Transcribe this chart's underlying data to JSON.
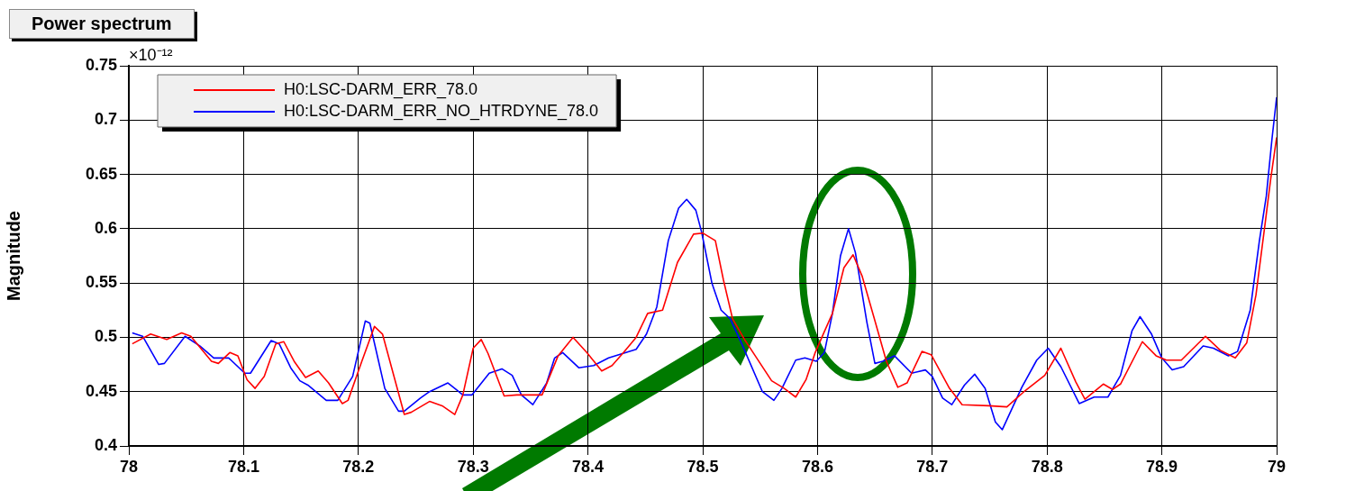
{
  "chart_data": {
    "type": "line",
    "title": "Power spectrum",
    "ylabel": "Magnitude",
    "annotations": [
      "×10⁻¹²"
    ],
    "xlim": [
      78,
      79
    ],
    "xticks": [
      78,
      78.1,
      78.2,
      78.3,
      78.4,
      78.5,
      78.6,
      78.7,
      78.8,
      78.9,
      79
    ],
    "ylim": [
      0.4,
      0.75
    ],
    "yticks": [
      0.4,
      0.45,
      0.5,
      0.55,
      0.6,
      0.65,
      0.7,
      0.75
    ],
    "grid": true,
    "legend": "top left",
    "line_style": "solid",
    "series": [
      {
        "name": "H0:LSC-DARM_ERR_78.0",
        "color": "#ff0000",
        "x": [
          78.003,
          78.019,
          78.033,
          78.046,
          78.054,
          78.072,
          78.078,
          78.088,
          78.095,
          78.103,
          78.11,
          78.118,
          78.128,
          78.135,
          78.144,
          78.154,
          78.165,
          78.174,
          78.186,
          78.191,
          78.203,
          78.214,
          78.221,
          78.231,
          78.24,
          78.246,
          78.262,
          78.273,
          78.284,
          78.291,
          78.3,
          78.307,
          78.313,
          78.327,
          78.338,
          78.348,
          78.36,
          78.374,
          78.387,
          78.399,
          78.412,
          78.421,
          78.431,
          78.442,
          78.452,
          78.465,
          78.478,
          78.492,
          78.5,
          78.511,
          78.518,
          78.526,
          78.537,
          78.547,
          78.56,
          78.571,
          78.581,
          78.59,
          78.598,
          78.605,
          78.613,
          78.623,
          78.631,
          78.639,
          78.649,
          78.66,
          78.67,
          78.678,
          78.691,
          78.699,
          78.715,
          78.726,
          78.749,
          78.765,
          78.781,
          78.798,
          78.812,
          78.825,
          78.833,
          78.849,
          78.857,
          78.864,
          78.883,
          78.895,
          78.904,
          78.917,
          78.938,
          78.951,
          78.964,
          78.974,
          78.982,
          78.99,
          78.995,
          79.0
        ],
        "values": [
          0.494,
          0.503,
          0.498,
          0.504,
          0.501,
          0.478,
          0.476,
          0.486,
          0.483,
          0.461,
          0.453,
          0.464,
          0.494,
          0.496,
          0.478,
          0.463,
          0.469,
          0.458,
          0.439,
          0.442,
          0.478,
          0.51,
          0.503,
          0.464,
          0.429,
          0.431,
          0.441,
          0.437,
          0.429,
          0.447,
          0.49,
          0.498,
          0.485,
          0.446,
          0.447,
          0.447,
          0.447,
          0.483,
          0.5,
          0.486,
          0.469,
          0.474,
          0.486,
          0.5,
          0.522,
          0.525,
          0.569,
          0.595,
          0.596,
          0.589,
          0.553,
          0.517,
          0.497,
          0.481,
          0.46,
          0.453,
          0.445,
          0.461,
          0.486,
          0.503,
          0.522,
          0.564,
          0.576,
          0.556,
          0.519,
          0.478,
          0.454,
          0.458,
          0.487,
          0.484,
          0.453,
          0.438,
          0.437,
          0.436,
          0.451,
          0.465,
          0.49,
          0.459,
          0.443,
          0.457,
          0.452,
          0.457,
          0.496,
          0.483,
          0.479,
          0.479,
          0.501,
          0.488,
          0.481,
          0.495,
          0.539,
          0.605,
          0.647,
          0.684
        ]
      },
      {
        "name": "H0:LSC-DARM_ERR_NO_HTRDYNE_78.0",
        "color": "#0000ff",
        "x": [
          78.003,
          78.012,
          78.026,
          78.031,
          78.049,
          78.062,
          78.074,
          78.087,
          78.101,
          78.106,
          78.124,
          78.131,
          78.141,
          78.149,
          78.156,
          78.172,
          78.182,
          78.195,
          78.206,
          78.21,
          78.223,
          78.235,
          78.24,
          78.254,
          78.262,
          78.278,
          78.291,
          78.299,
          78.314,
          78.325,
          78.334,
          78.342,
          78.352,
          78.364,
          78.371,
          78.378,
          78.392,
          78.405,
          78.418,
          78.442,
          78.451,
          78.46,
          78.47,
          78.479,
          78.486,
          78.494,
          78.499,
          78.508,
          78.516,
          78.524,
          78.534,
          78.552,
          78.562,
          78.569,
          78.581,
          78.589,
          78.599,
          78.606,
          78.613,
          78.62,
          78.627,
          78.633,
          78.643,
          78.65,
          78.657,
          78.667,
          78.682,
          78.694,
          78.7,
          78.709,
          78.717,
          78.728,
          78.737,
          78.746,
          78.755,
          78.761,
          78.778,
          78.791,
          78.801,
          78.812,
          78.828,
          78.841,
          78.853,
          78.864,
          78.874,
          78.881,
          78.891,
          78.9,
          78.909,
          78.919,
          78.936,
          78.945,
          78.958,
          78.966,
          78.977,
          78.985,
          78.991,
          78.996,
          79.0
        ],
        "values": [
          0.504,
          0.501,
          0.475,
          0.476,
          0.501,
          0.492,
          0.481,
          0.481,
          0.467,
          0.467,
          0.497,
          0.494,
          0.472,
          0.46,
          0.456,
          0.442,
          0.442,
          0.464,
          0.515,
          0.513,
          0.453,
          0.432,
          0.432,
          0.444,
          0.45,
          0.458,
          0.447,
          0.447,
          0.467,
          0.471,
          0.465,
          0.447,
          0.438,
          0.458,
          0.481,
          0.486,
          0.472,
          0.474,
          0.481,
          0.489,
          0.503,
          0.528,
          0.589,
          0.619,
          0.627,
          0.617,
          0.597,
          0.55,
          0.525,
          0.517,
          0.494,
          0.45,
          0.442,
          0.453,
          0.479,
          0.481,
          0.478,
          0.486,
          0.522,
          0.575,
          0.6,
          0.578,
          0.514,
          0.476,
          0.478,
          0.483,
          0.467,
          0.47,
          0.464,
          0.444,
          0.438,
          0.456,
          0.466,
          0.453,
          0.422,
          0.415,
          0.454,
          0.479,
          0.49,
          0.473,
          0.439,
          0.445,
          0.445,
          0.465,
          0.506,
          0.519,
          0.503,
          0.481,
          0.47,
          0.473,
          0.492,
          0.49,
          0.483,
          0.487,
          0.525,
          0.589,
          0.63,
          0.683,
          0.721
        ]
      }
    ]
  }
}
